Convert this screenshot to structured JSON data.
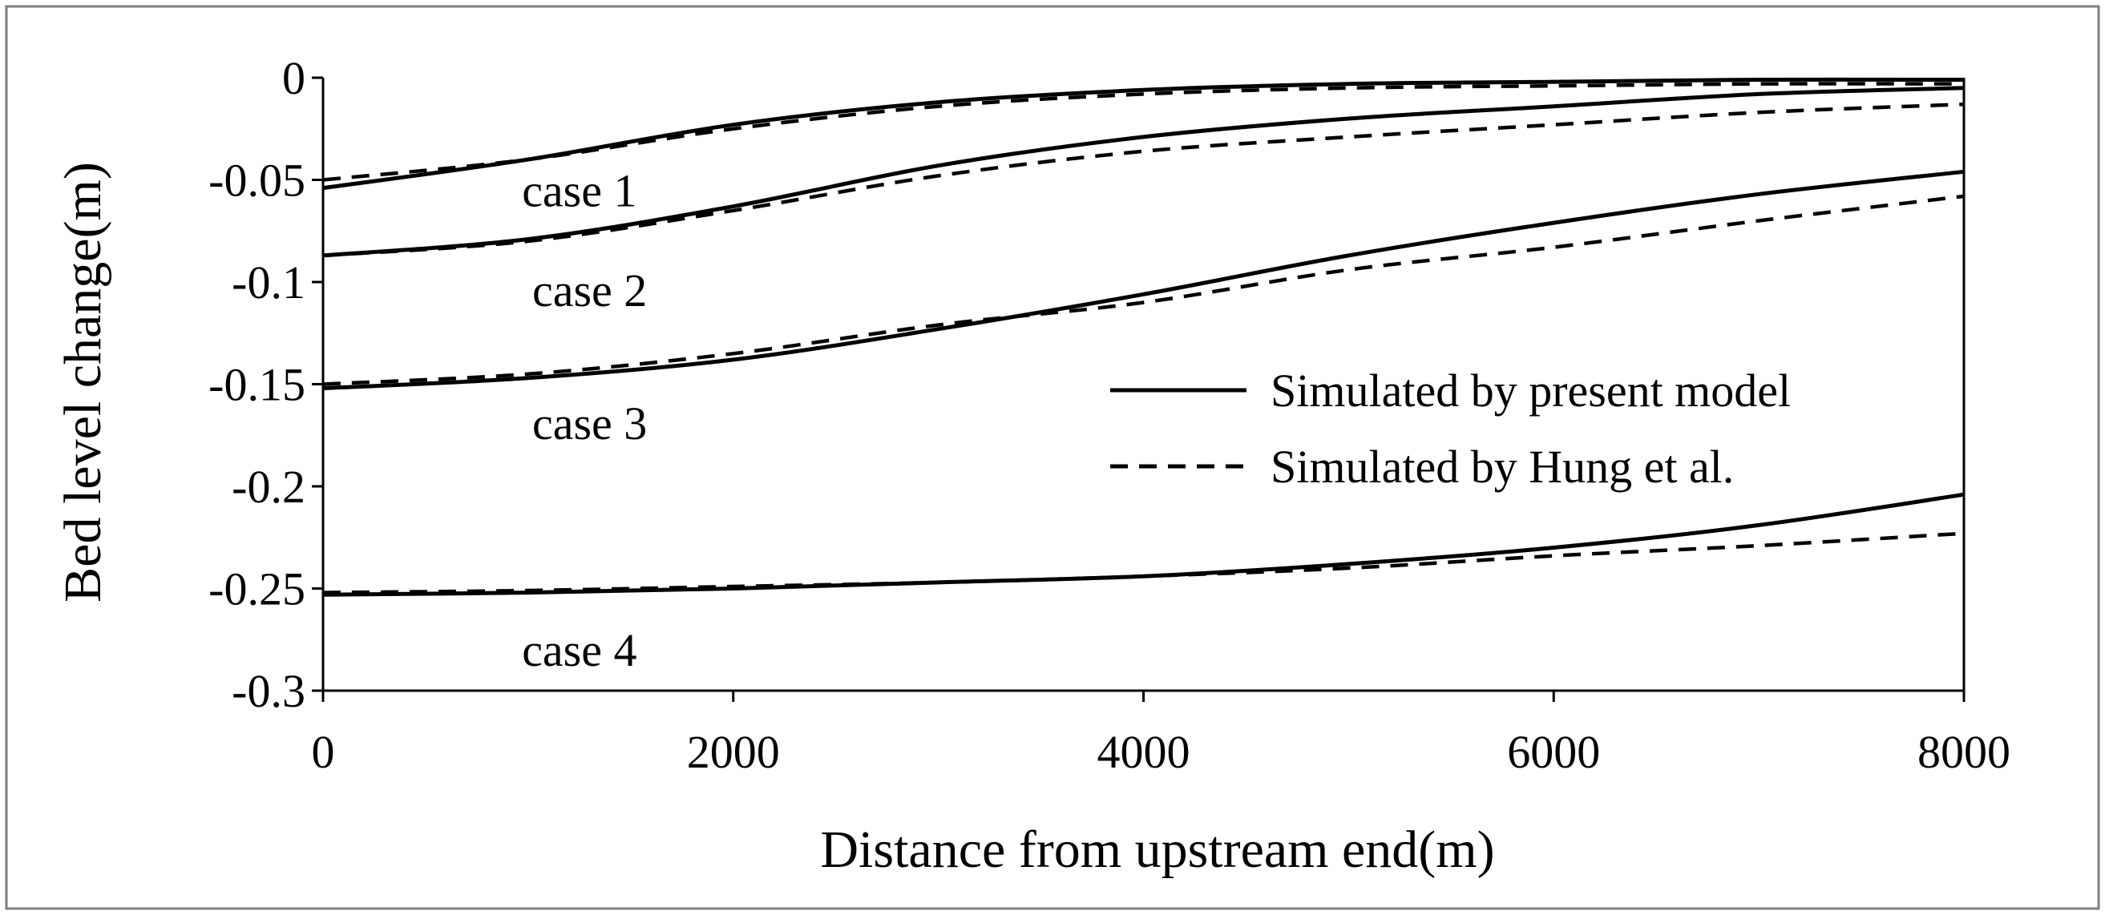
{
  "chart_data": {
    "type": "line",
    "title": "",
    "xlabel": "Distance from upstream end(m)",
    "ylabel": "Bed level change(m)",
    "xlim": [
      0,
      8000
    ],
    "ylim": [
      -0.3,
      0
    ],
    "xticks": [
      0,
      2000,
      4000,
      6000,
      8000
    ],
    "xtick_labels": [
      "0",
      "2000",
      "4000",
      "6000",
      "8000"
    ],
    "yticks": [
      0,
      -0.05,
      -0.1,
      -0.15,
      -0.2,
      -0.25,
      -0.3
    ],
    "ytick_labels": [
      "0",
      "-0.05",
      "-0.1",
      "-0.15",
      "-0.2",
      "-0.25",
      "-0.3"
    ],
    "grid": false,
    "legend_position": "center-right",
    "x": [
      0,
      1000,
      2000,
      3000,
      4000,
      5000,
      6000,
      7000,
      8000
    ],
    "series": [
      {
        "name": "Simulated by present model",
        "case": "case 1",
        "style": "solid",
        "values": [
          -0.054,
          -0.04,
          -0.023,
          -0.012,
          -0.006,
          -0.003,
          -0.002,
          -0.001,
          -0.001
        ]
      },
      {
        "name": "Simulated by Hung et al.",
        "case": "case 1",
        "style": "dashed",
        "values": [
          -0.05,
          -0.04,
          -0.025,
          -0.014,
          -0.008,
          -0.005,
          -0.004,
          -0.003,
          -0.003
        ]
      },
      {
        "name": "Simulated by present model",
        "case": "case 2",
        "style": "solid",
        "values": [
          -0.087,
          -0.079,
          -0.063,
          -0.043,
          -0.029,
          -0.02,
          -0.014,
          -0.008,
          -0.005
        ]
      },
      {
        "name": "Simulated by Hung et al.",
        "case": "case 2",
        "style": "dashed",
        "values": [
          -0.087,
          -0.08,
          -0.065,
          -0.048,
          -0.036,
          -0.029,
          -0.023,
          -0.017,
          -0.013
        ]
      },
      {
        "name": "Simulated by present model",
        "case": "case 3",
        "style": "solid",
        "values": [
          -0.152,
          -0.147,
          -0.138,
          -0.123,
          -0.106,
          -0.087,
          -0.071,
          -0.057,
          -0.046
        ]
      },
      {
        "name": "Simulated by Hung et al.",
        "case": "case 3",
        "style": "dashed",
        "values": [
          -0.15,
          -0.145,
          -0.135,
          -0.121,
          -0.11,
          -0.094,
          -0.083,
          -0.07,
          -0.058
        ]
      },
      {
        "name": "Simulated by present model",
        "case": "case 4",
        "style": "solid",
        "values": [
          -0.253,
          -0.252,
          -0.25,
          -0.247,
          -0.244,
          -0.238,
          -0.23,
          -0.219,
          -0.204
        ]
      },
      {
        "name": "Simulated by Hung et al.",
        "case": "case 4",
        "style": "dashed",
        "values": [
          -0.252,
          -0.251,
          -0.249,
          -0.247,
          -0.244,
          -0.24,
          -0.234,
          -0.229,
          -0.223
        ]
      }
    ],
    "legend": [
      {
        "label": "Simulated by present model",
        "style": "solid"
      },
      {
        "label": "Simulated by Hung et al.",
        "style": "dashed"
      }
    ],
    "annotations": [
      {
        "text": "case 1",
        "x": 1250,
        "y": -0.055
      },
      {
        "text": "case 2",
        "x": 1300,
        "y": -0.104
      },
      {
        "text": "case 3",
        "x": 1300,
        "y": -0.169
      },
      {
        "text": "case 4",
        "x": 1250,
        "y": -0.28
      }
    ],
    "line_color": "#000000"
  }
}
